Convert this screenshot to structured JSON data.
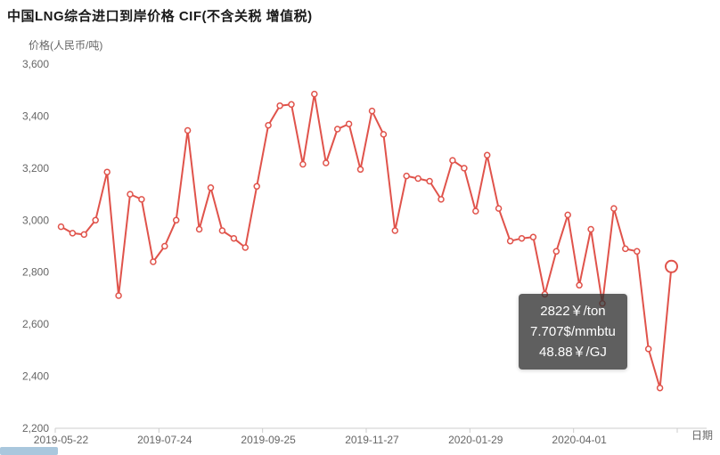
{
  "title": "中国LNG综合进口到岸价格  CIF(不含关税  增值税)",
  "y_axis_label": "价格(人民币/吨)",
  "x_axis_label": "日期",
  "tooltip": {
    "lines": [
      "2822￥/ton",
      "7.707$/mmbtu",
      "48.88￥/GJ"
    ]
  },
  "colors": {
    "line": "#e0534b",
    "marker_fill": "#ffffff",
    "axis": "#cccccc",
    "text": "#666666",
    "title_text": "#1a1a1a",
    "tooltip_bg": "rgba(50,50,50,0.78)",
    "scrollbar": "#a9c7dd"
  },
  "chart_data": {
    "type": "line",
    "title": "中国LNG综合进口到岸价格  CIF(不含关税  增值税)",
    "xlabel": "日期",
    "ylabel": "价格(人民币/吨)",
    "ylim": [
      2200,
      3600
    ],
    "y_ticks": [
      2200,
      2400,
      2600,
      2800,
      3000,
      3200,
      3400,
      3600
    ],
    "x_ticks": [
      "2019-05-22",
      "2019-07-24",
      "2019-09-25",
      "2019-11-27",
      "2020-01-29",
      "2020-04-01"
    ],
    "tick_indices": [
      0,
      9,
      18,
      27,
      36,
      45
    ],
    "grid": false,
    "legend": false,
    "values": [
      2975,
      2950,
      2945,
      3000,
      3185,
      2710,
      3100,
      3080,
      2840,
      2900,
      3000,
      3345,
      2965,
      3125,
      2960,
      2930,
      2895,
      3130,
      3365,
      3440,
      3445,
      3215,
      3485,
      3220,
      3350,
      3370,
      3195,
      3420,
      3330,
      2960,
      3170,
      3160,
      3150,
      3080,
      3230,
      3200,
      3035,
      3250,
      3045,
      2920,
      2930,
      2935,
      2715,
      2880,
      3020,
      2750,
      2965,
      2680,
      3045,
      2890,
      2880,
      2505,
      2355,
      2822
    ],
    "highlight": {
      "index": 53,
      "value": 2822
    },
    "tooltip_values": {
      "per_ton": "2822￥/ton",
      "per_mmbtu": "7.707$/mmbtu",
      "per_gj": "48.88￥/GJ"
    }
  }
}
